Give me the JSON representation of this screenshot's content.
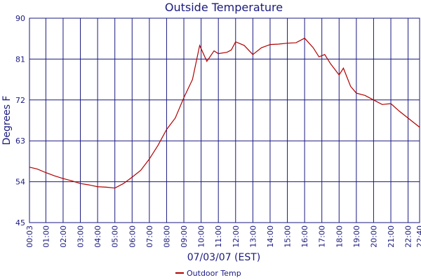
{
  "chart_data": {
    "type": "line",
    "title": "Outside Temperature",
    "x_label": "07/03/07 (EST)",
    "y_label": "Degrees F",
    "xlim": [
      3,
      1360
    ],
    "ylim": [
      45,
      90
    ],
    "xticks": [
      {
        "value": 3,
        "label": "00:03"
      },
      {
        "value": 60,
        "label": "01:00"
      },
      {
        "value": 120,
        "label": "02:00"
      },
      {
        "value": 180,
        "label": "03:00"
      },
      {
        "value": 240,
        "label": "04:00"
      },
      {
        "value": 300,
        "label": "05:00"
      },
      {
        "value": 360,
        "label": "06:00"
      },
      {
        "value": 420,
        "label": "07:00"
      },
      {
        "value": 480,
        "label": "08:00"
      },
      {
        "value": 540,
        "label": "09:00"
      },
      {
        "value": 600,
        "label": "10:00"
      },
      {
        "value": 660,
        "label": "11:00"
      },
      {
        "value": 720,
        "label": "12:00"
      },
      {
        "value": 780,
        "label": "13:00"
      },
      {
        "value": 840,
        "label": "14:00"
      },
      {
        "value": 900,
        "label": "15:00"
      },
      {
        "value": 960,
        "label": "16:00"
      },
      {
        "value": 1020,
        "label": "17:00"
      },
      {
        "value": 1080,
        "label": "18:00"
      },
      {
        "value": 1140,
        "label": "19:00"
      },
      {
        "value": 1200,
        "label": "20:00"
      },
      {
        "value": 1260,
        "label": "21:00"
      },
      {
        "value": 1320,
        "label": "22:00"
      },
      {
        "value": 1360,
        "label": "22:40"
      }
    ],
    "yticks": [
      45,
      54,
      63,
      72,
      81,
      90
    ],
    "grid": true,
    "legend": "bottom",
    "x": [
      3,
      30,
      60,
      90,
      120,
      150,
      180,
      210,
      240,
      270,
      300,
      330,
      360,
      390,
      420,
      450,
      480,
      510,
      540,
      570,
      595,
      620,
      645,
      660,
      690,
      705,
      720,
      750,
      780,
      810,
      840,
      870,
      900,
      930,
      960,
      990,
      1010,
      1030,
      1050,
      1080,
      1095,
      1120,
      1140,
      1170,
      1200,
      1230,
      1260,
      1290,
      1320,
      1360
    ],
    "series": [
      {
        "name": "Outdoor Temp",
        "color": "#b00000",
        "values": [
          57.2,
          56.8,
          56.0,
          55.3,
          54.7,
          54.2,
          53.6,
          53.3,
          52.9,
          52.8,
          52.6,
          53.6,
          55.0,
          56.5,
          59.0,
          62.0,
          65.5,
          68.0,
          72.5,
          76.5,
          84.0,
          80.5,
          82.8,
          82.2,
          82.5,
          83.0,
          84.8,
          84.0,
          82.0,
          83.5,
          84.2,
          84.3,
          84.5,
          84.6,
          85.6,
          83.5,
          81.5,
          82.0,
          80.0,
          77.5,
          79.0,
          75.0,
          73.5,
          73.0,
          72.0,
          71.0,
          71.2,
          69.5,
          68.0,
          66.0
        ]
      }
    ]
  }
}
